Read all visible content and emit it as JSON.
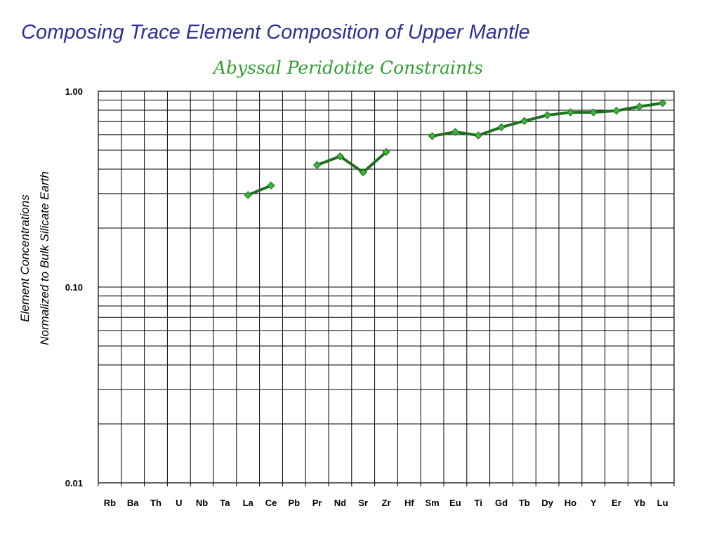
{
  "slide": {
    "title": "Composing Trace Element Composition of Upper Mantle"
  },
  "chart_data": {
    "type": "line",
    "title": "Abyssal Peridotite Constraints",
    "ylabel_line1": "Element Concentrations",
    "ylabel_line2": "Normalized to Bulk Silicate Earth",
    "xlabel": "",
    "yscale": "log",
    "ylim": [
      0.01,
      1.0
    ],
    "ytick_labels": [
      "1.00",
      "0.10",
      "0.01"
    ],
    "grid": true,
    "categories": [
      "Rb",
      "Ba",
      "Th",
      "U",
      "Nb",
      "Ta",
      "La",
      "Ce",
      "Pb",
      "Pr",
      "Nd",
      "Sr",
      "Zr",
      "Hf",
      "Sm",
      "Eu",
      "Ti",
      "Gd",
      "Tb",
      "Dy",
      "Ho",
      "Y",
      "Er",
      "Yb",
      "Lu"
    ],
    "series": [
      {
        "color": "#1f6f1f",
        "marker_color": "#3cb43c",
        "values": [
          null,
          null,
          null,
          null,
          null,
          null,
          0.295,
          0.33,
          null,
          0.42,
          0.465,
          0.385,
          0.49,
          null,
          0.59,
          0.62,
          0.595,
          0.655,
          0.705,
          0.755,
          0.78,
          0.78,
          0.795,
          0.835,
          0.87
        ]
      }
    ]
  }
}
